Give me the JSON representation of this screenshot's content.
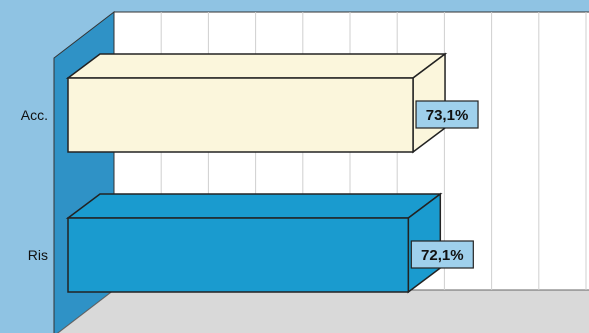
{
  "chart_data": {
    "type": "bar",
    "orientation": "horizontal",
    "three_d": true,
    "categories": [
      "Acc.",
      "Ris"
    ],
    "series": [
      {
        "values": [
          73.1,
          72.1
        ]
      }
    ],
    "data_labels": [
      "73,1%",
      "72,1%"
    ],
    "bar_colors": [
      "#fbf6dc",
      "#1a9bcf"
    ],
    "xlim": [
      0,
      100
    ],
    "grid": true,
    "legend": "none"
  },
  "colors": {
    "background": "#8fc3e3",
    "left_wall": "#2f92c6",
    "back_wall": "#ffffff",
    "floor": "#d9d9d9",
    "label_box": "#9fd0ec"
  }
}
